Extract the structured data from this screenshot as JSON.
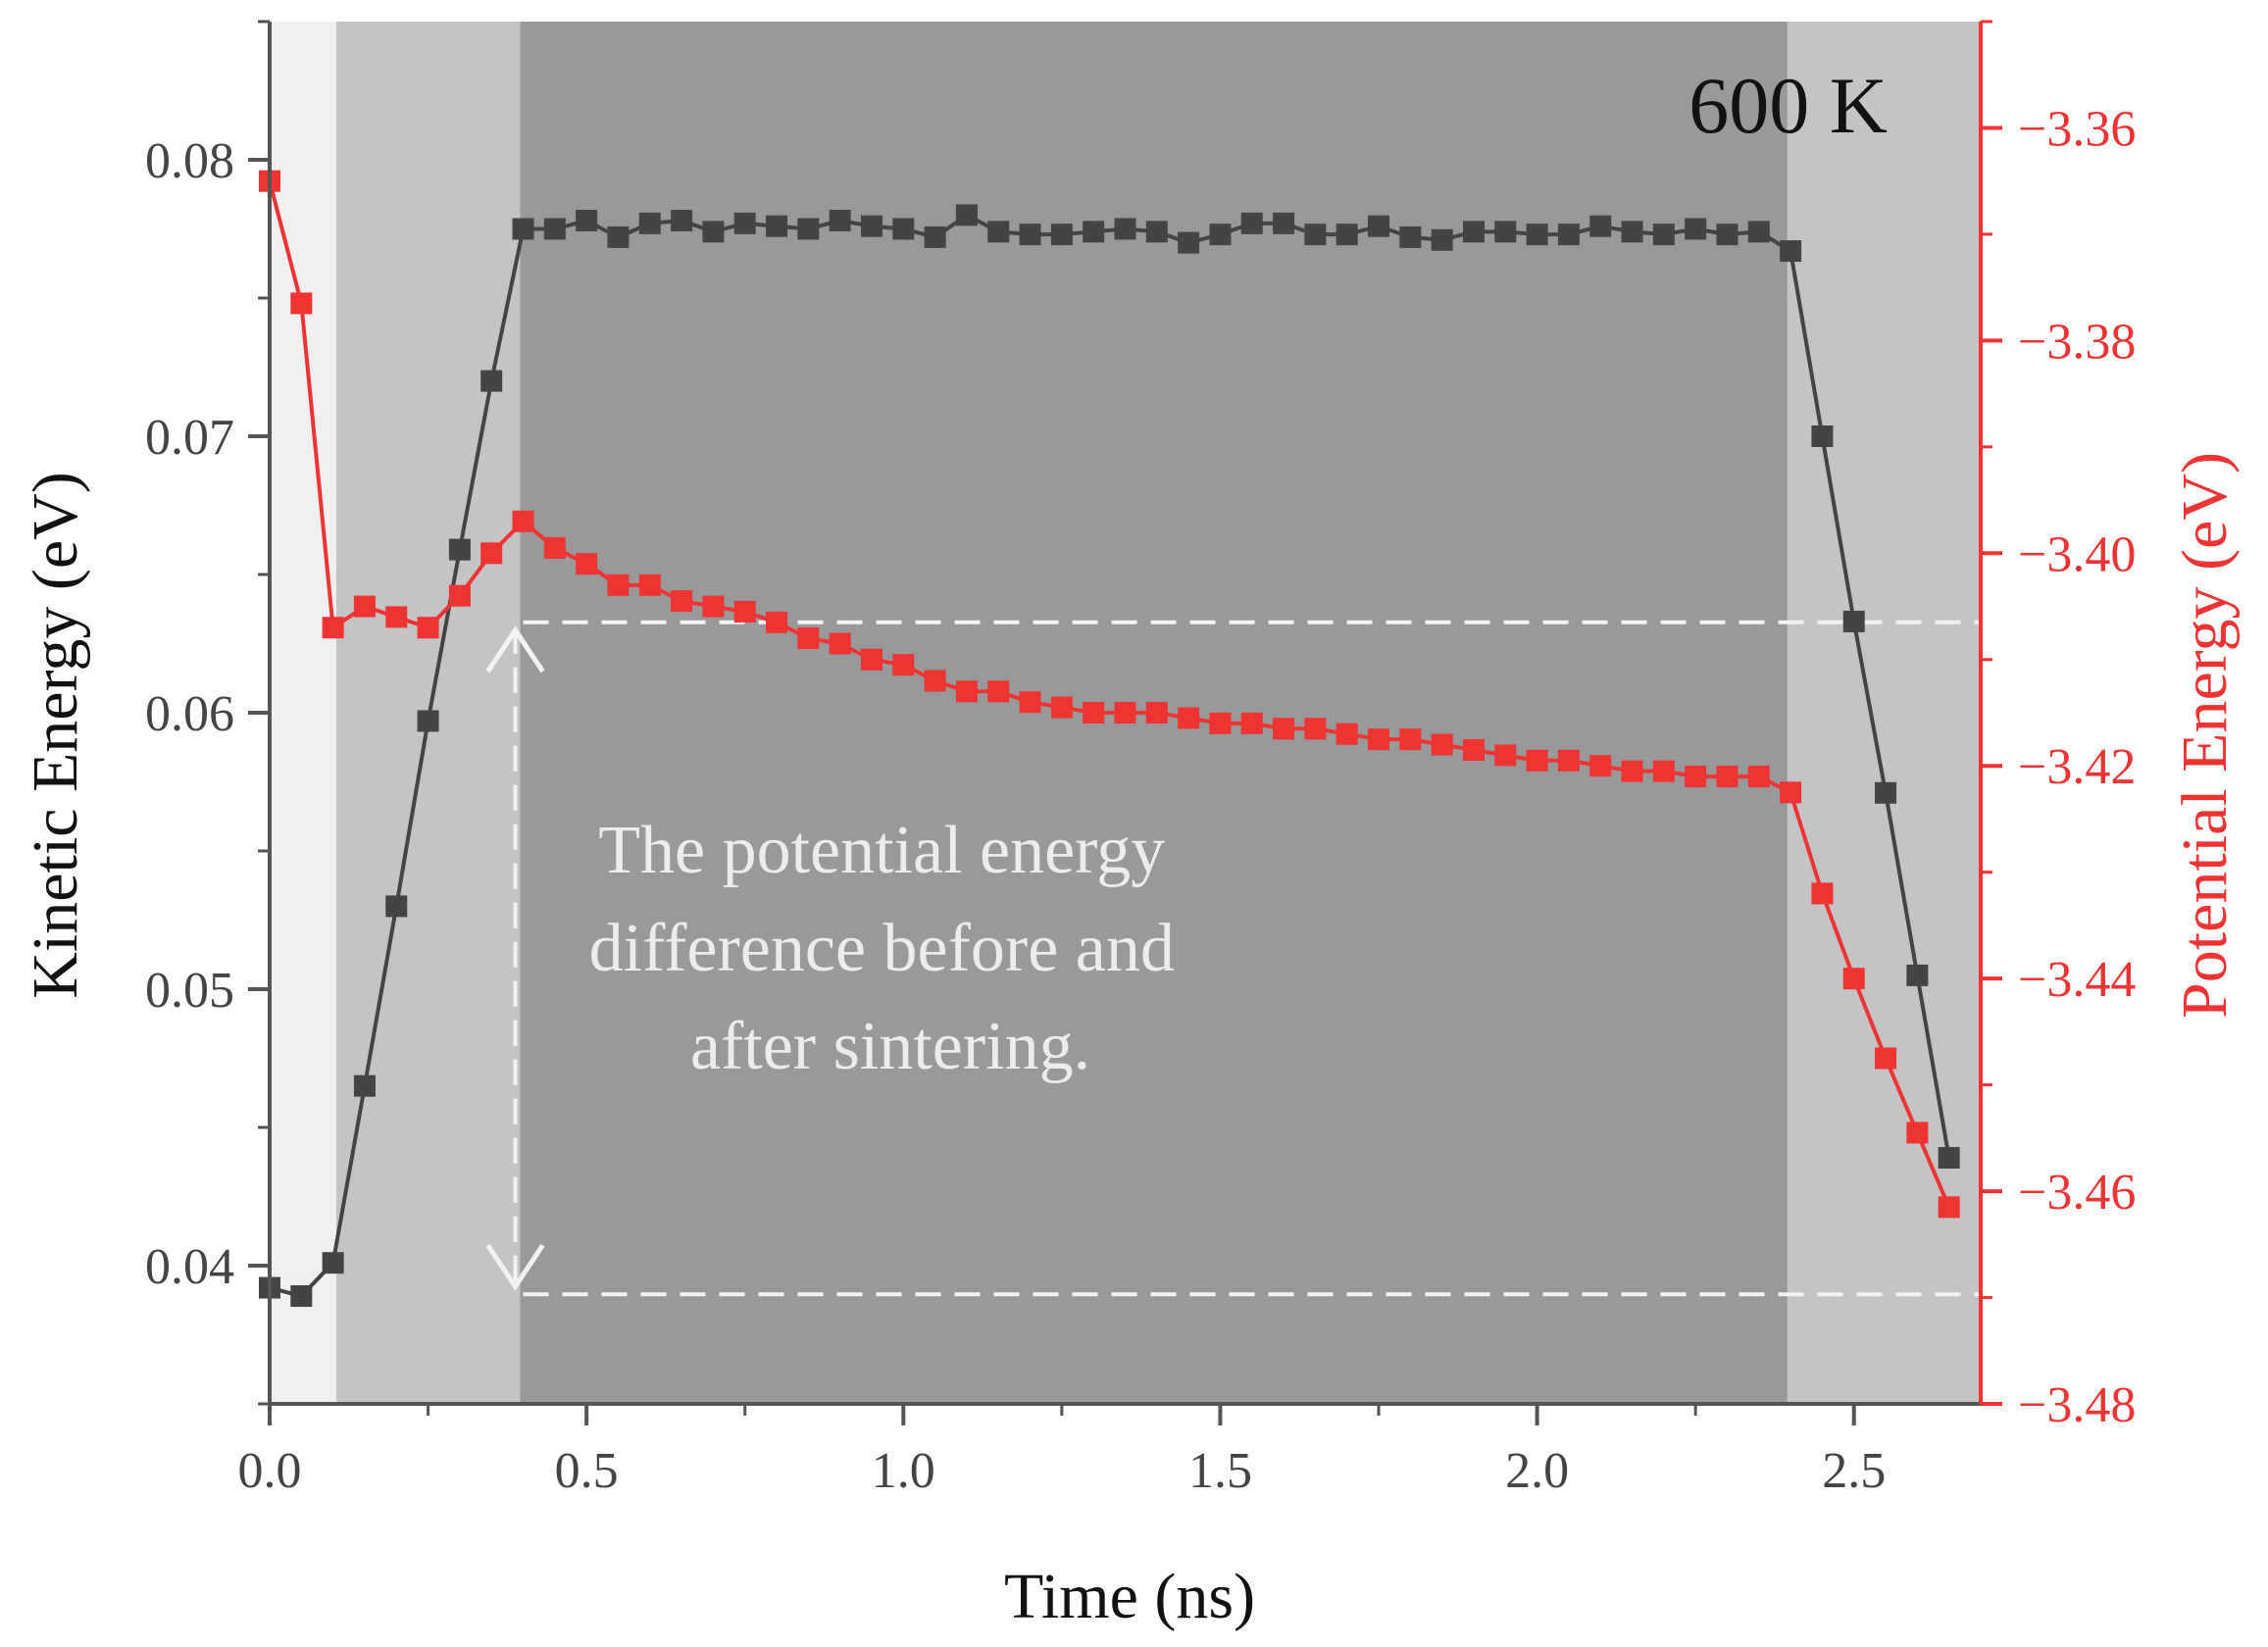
{
  "chart_data": {
    "type": "line",
    "annotation_top_right": "600 K",
    "annotation_center": [
      "The potential energy",
      "difference before and",
      "after sintering."
    ],
    "xlabel": "Time (ns)",
    "ylabel_left": "Kinetic Energy (eV)",
    "ylabel_right": "Potential Energy (eV)",
    "xlim": [
      0,
      2.7
    ],
    "ylim_left": [
      0.035,
      0.085
    ],
    "ylim_right": [
      -3.48,
      -3.35
    ],
    "x_ticks": [
      "0.0",
      "0.5",
      "1.0",
      "1.5",
      "2.0",
      "2.5"
    ],
    "y_left_ticks": [
      "0.04",
      "0.05",
      "0.06",
      "0.07",
      "0.08"
    ],
    "y_right_ticks": [
      "−3.36",
      "−3.38",
      "−3.40",
      "−3.42",
      "−3.44",
      "−3.46",
      "−3.48"
    ],
    "regions": [
      {
        "x_start": 0.0,
        "x_end": 0.105,
        "shade": "#f0f0f0"
      },
      {
        "x_start": 0.105,
        "x_end": 0.395,
        "shade": "#c4c4c4"
      },
      {
        "x_start": 0.395,
        "x_end": 2.395,
        "shade": "#999999"
      },
      {
        "x_start": 2.395,
        "x_end": 2.7,
        "shade": "#c4c4c4"
      }
    ],
    "reference_lines": {
      "pe_before": -3.4065,
      "pe_after": -3.4697
    },
    "arrow_x": 0.4,
    "series": [
      {
        "name": "Kinetic Energy",
        "axis": "left",
        "color": "#444444",
        "x": [
          0.0,
          0.05,
          0.1,
          0.15,
          0.2,
          0.25,
          0.3,
          0.35,
          0.4,
          0.45,
          0.5,
          0.55,
          0.6,
          0.65,
          0.7,
          0.75,
          0.8,
          0.85,
          0.9,
          0.95,
          1.0,
          1.05,
          1.1,
          1.15,
          1.2,
          1.25,
          1.3,
          1.35,
          1.4,
          1.45,
          1.5,
          1.55,
          1.6,
          1.65,
          1.7,
          1.75,
          1.8,
          1.85,
          1.9,
          1.95,
          2.0,
          2.05,
          2.1,
          2.15,
          2.2,
          2.25,
          2.3,
          2.35,
          2.4,
          2.45,
          2.5,
          2.55,
          2.6,
          2.65
        ],
        "values": [
          0.0392,
          0.0389,
          0.0401,
          0.0465,
          0.053,
          0.0597,
          0.0659,
          0.072,
          0.0775,
          0.0775,
          0.0778,
          0.0772,
          0.0777,
          0.0778,
          0.0774,
          0.0777,
          0.0776,
          0.0775,
          0.0778,
          0.0776,
          0.0775,
          0.0772,
          0.078,
          0.0774,
          0.0773,
          0.0773,
          0.0774,
          0.0775,
          0.0774,
          0.077,
          0.0773,
          0.0777,
          0.0777,
          0.0773,
          0.0773,
          0.0776,
          0.0772,
          0.0771,
          0.0774,
          0.0774,
          0.0773,
          0.0773,
          0.0776,
          0.0774,
          0.0773,
          0.0775,
          0.0773,
          0.0774,
          0.0767,
          0.07,
          0.0633,
          0.0571,
          0.0505,
          0.0439
        ]
      },
      {
        "name": "Potential Energy",
        "axis": "right",
        "color": "#ee3333",
        "x": [
          0.0,
          0.05,
          0.1,
          0.15,
          0.2,
          0.25,
          0.3,
          0.35,
          0.4,
          0.45,
          0.5,
          0.55,
          0.6,
          0.65,
          0.7,
          0.75,
          0.8,
          0.85,
          0.9,
          0.95,
          1.0,
          1.05,
          1.1,
          1.15,
          1.2,
          1.25,
          1.3,
          1.35,
          1.4,
          1.45,
          1.5,
          1.55,
          1.6,
          1.65,
          1.7,
          1.75,
          1.8,
          1.85,
          1.9,
          1.95,
          2.0,
          2.05,
          2.1,
          2.15,
          2.2,
          2.25,
          2.3,
          2.35,
          2.4,
          2.45,
          2.5,
          2.55,
          2.6,
          2.65
        ],
        "values": [
          -3.365,
          -3.3765,
          -3.407,
          -3.405,
          -3.406,
          -3.407,
          -3.404,
          -3.4,
          -3.397,
          -3.3995,
          -3.401,
          -3.403,
          -3.403,
          -3.4045,
          -3.405,
          -3.4055,
          -3.4065,
          -3.408,
          -3.4085,
          -3.41,
          -3.4105,
          -3.412,
          -3.413,
          -3.413,
          -3.414,
          -3.4145,
          -3.415,
          -3.415,
          -3.415,
          -3.4155,
          -3.416,
          -3.416,
          -3.4165,
          -3.4165,
          -3.417,
          -3.4175,
          -3.4175,
          -3.418,
          -3.4185,
          -3.419,
          -3.4195,
          -3.4195,
          -3.42,
          -3.4205,
          -3.4205,
          -3.421,
          -3.421,
          -3.421,
          -3.4225,
          -3.432,
          -3.44,
          -3.4475,
          -3.4545,
          -3.4615
        ]
      }
    ]
  }
}
